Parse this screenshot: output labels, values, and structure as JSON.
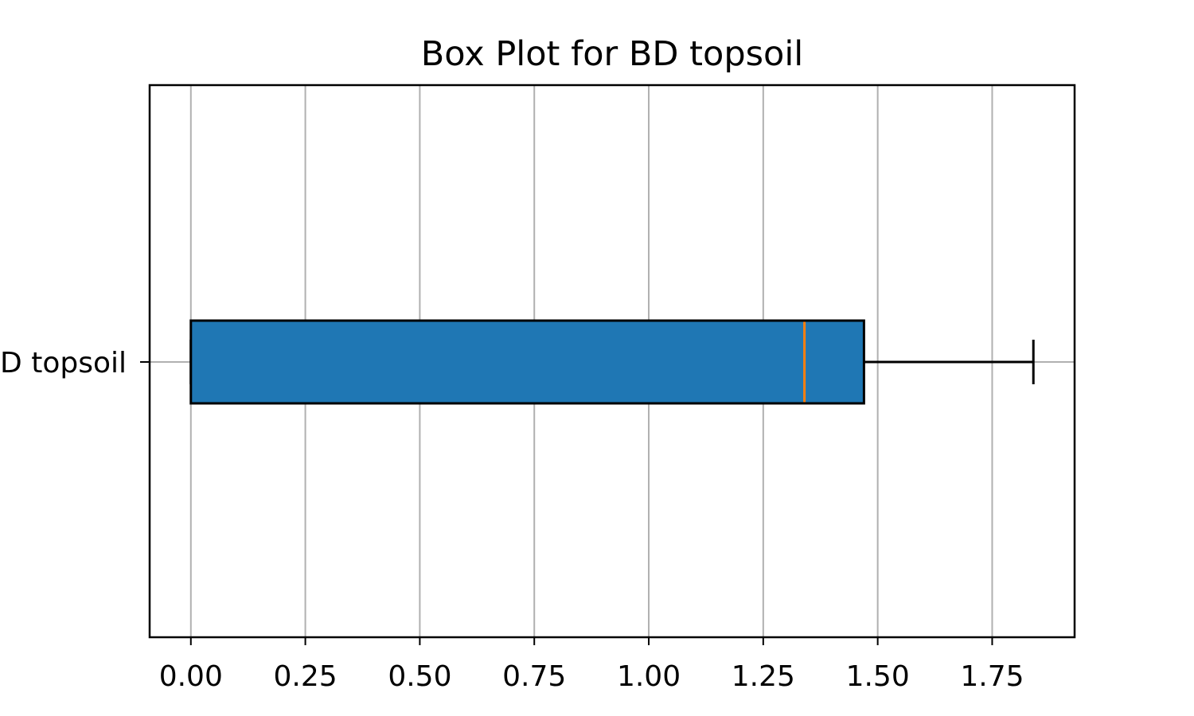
{
  "chart_data": {
    "type": "boxplot",
    "orientation": "horizontal",
    "title": "Box Plot for BD topsoil",
    "xlabel": "",
    "ylabel": "",
    "categories": [
      "BD topsoil"
    ],
    "xlim": [
      -0.09,
      1.93
    ],
    "xticks": [
      0.0,
      0.25,
      0.5,
      0.75,
      1.0,
      1.25,
      1.5,
      1.75
    ],
    "xtick_labels": [
      "0.00",
      "0.25",
      "0.50",
      "0.75",
      "1.00",
      "1.25",
      "1.50",
      "1.75"
    ],
    "grid": true,
    "boxes": [
      {
        "category": "BD topsoil",
        "whisker_low": 0.0,
        "q1": 0.0,
        "median": 1.34,
        "q3": 1.47,
        "whisker_high": 1.84
      }
    ],
    "colors": {
      "box_fill": "#1f77b4",
      "median": "#ff7f0e",
      "grid": "#b0b0b0",
      "edge": "#000000"
    }
  }
}
